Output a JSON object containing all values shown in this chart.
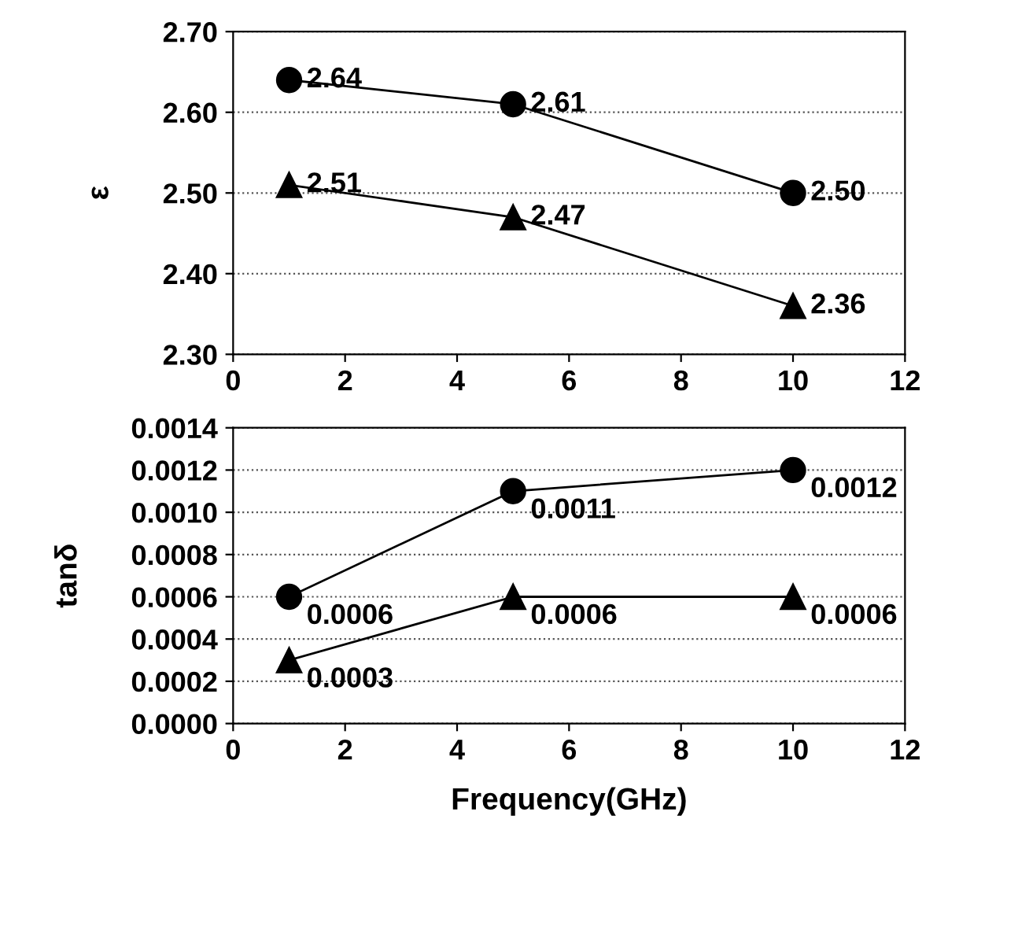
{
  "chart_data": [
    {
      "type": "line",
      "ylabel": "ε",
      "x": [
        1,
        5,
        10
      ],
      "series": [
        {
          "color": "#000000",
          "marker": "circle",
          "values": [
            2.64,
            2.61,
            2.5
          ],
          "value_labels": [
            "2.64",
            "2.61",
            "2.50"
          ]
        },
        {
          "color": "#000000",
          "marker": "triangle",
          "values": [
            2.51,
            2.47,
            2.36
          ],
          "value_labels": [
            "2.51",
            "2.47",
            "2.36"
          ]
        }
      ],
      "xlim": [
        0,
        12
      ],
      "xticks": [
        0,
        2,
        4,
        6,
        8,
        10,
        12
      ],
      "ylim": [
        2.3,
        2.7
      ],
      "yticks": [
        {
          "value": 2.3,
          "label": "2.30"
        },
        {
          "value": 2.4,
          "label": "2.40"
        },
        {
          "value": 2.5,
          "label": "2.50"
        },
        {
          "value": 2.6,
          "label": "2.60"
        },
        {
          "value": 2.7,
          "label": "2.70"
        }
      ],
      "grid": "y",
      "legend": false
    },
    {
      "type": "line",
      "ylabel": "tanδ",
      "xlabel": "Frequency(GHz)",
      "x": [
        1,
        5,
        10
      ],
      "series": [
        {
          "color": "#000000",
          "marker": "circle",
          "values": [
            0.0006,
            0.0011,
            0.0012
          ],
          "value_labels": [
            "0.0006",
            "0.0011",
            "0.0012"
          ]
        },
        {
          "color": "#000000",
          "marker": "triangle",
          "values": [
            0.0003,
            0.0006,
            0.0006
          ],
          "value_labels": [
            "0.0003",
            "0.0006",
            "0.0006"
          ]
        }
      ],
      "xlim": [
        0,
        12
      ],
      "xticks": [
        0,
        2,
        4,
        6,
        8,
        10,
        12
      ],
      "ylim": [
        0,
        0.0014
      ],
      "yticks": [
        {
          "value": 0,
          "label": "0.0000"
        },
        {
          "value": 0.0002,
          "label": "0.0002"
        },
        {
          "value": 0.0004,
          "label": "0.0004"
        },
        {
          "value": 0.0006,
          "label": "0.0006"
        },
        {
          "value": 0.0008,
          "label": "0.0008"
        },
        {
          "value": 0.001,
          "label": "0.0010"
        },
        {
          "value": 0.0012,
          "label": "0.0012"
        },
        {
          "value": 0.0014,
          "label": "0.0014"
        }
      ],
      "grid": "y",
      "legend": false
    }
  ]
}
